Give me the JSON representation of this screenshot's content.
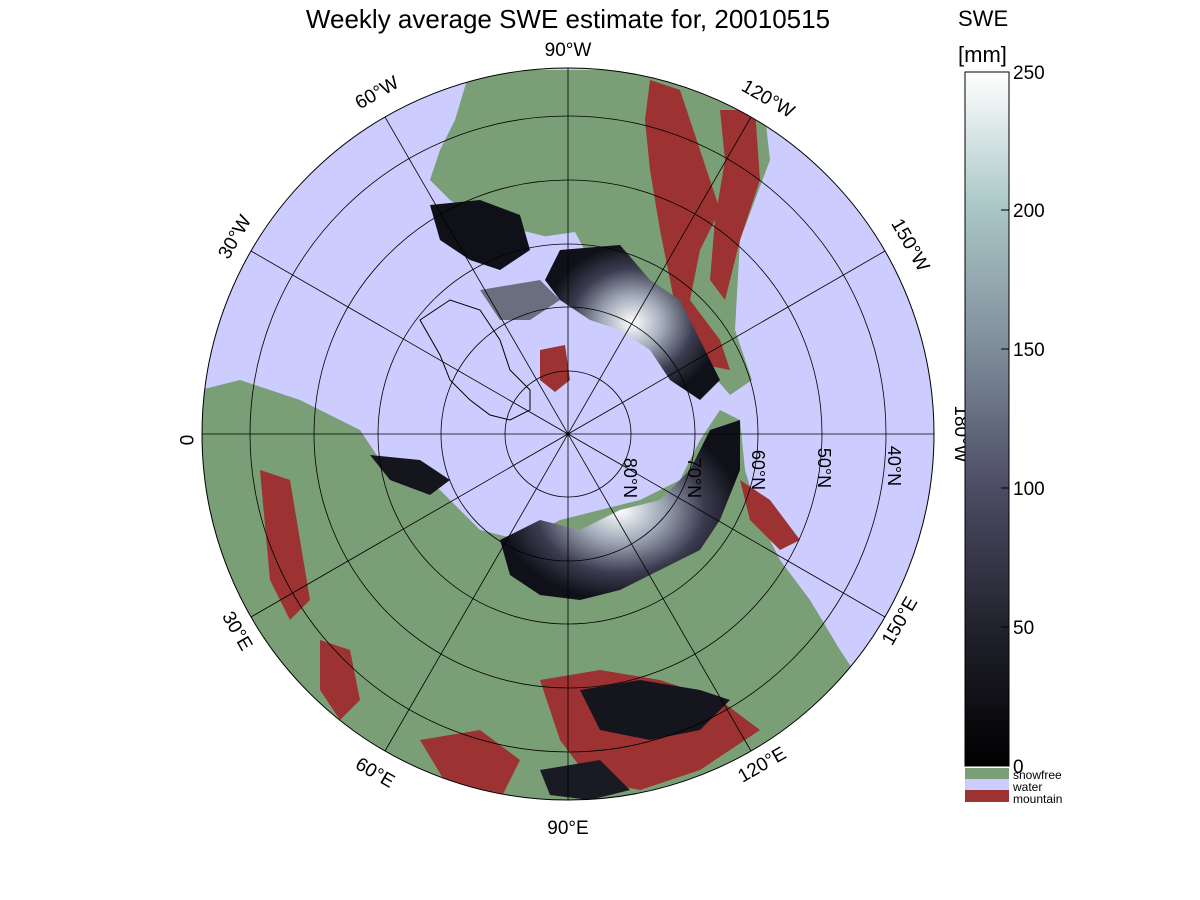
{
  "title": "Weekly average SWE estimate for, 20010515",
  "colorbar": {
    "title_line1": "SWE",
    "title_line2": "[mm]",
    "ticks": [
      "250",
      "200",
      "150",
      "100",
      "50",
      "0"
    ],
    "categories": [
      {
        "label": "snowfree",
        "color": "#7a9e76"
      },
      {
        "label": "water",
        "color": "#ccccff"
      },
      {
        "label": "mountain",
        "color": "#9c3232"
      }
    ]
  },
  "longitude_labels": [
    "90°W",
    "120°W",
    "150°W",
    "180°W",
    "150°E",
    "120°E",
    "90°E",
    "60°E",
    "30°E",
    "0",
    "30°W",
    "60°W"
  ],
  "latitude_labels": [
    "80°N",
    "70°N",
    "60°N",
    "50°N",
    "40°N"
  ],
  "colors": {
    "water": "#ccccff",
    "land": "#7a9e76",
    "mountain": "#9c3232"
  }
}
